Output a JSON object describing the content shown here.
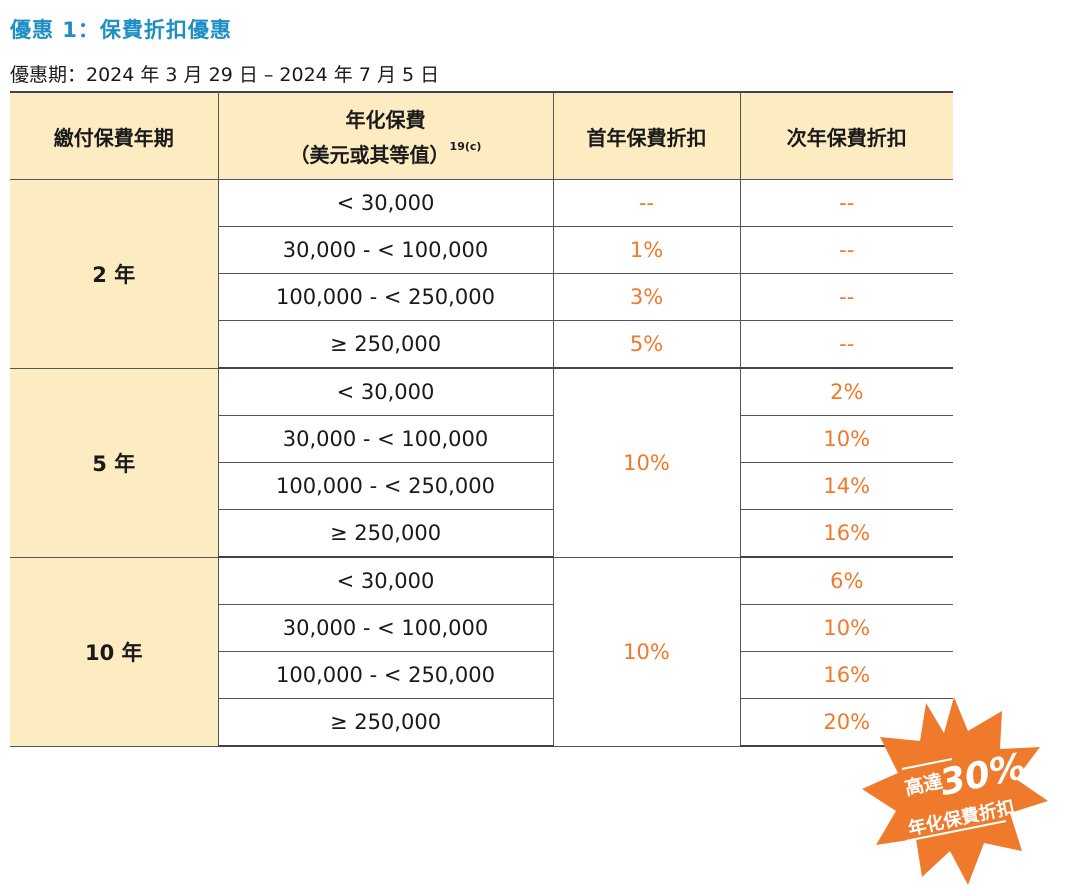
{
  "offer": {
    "title": "優惠 1：保費折扣優惠",
    "period": "優惠期：2024 年 3 月 29 日 – 2024 年 7 月 5 日"
  },
  "table": {
    "headers": {
      "term": "繳付保費年期",
      "premium_line1": "年化保費",
      "premium_line2": "（美元或其等值）",
      "premium_note": "19(c)",
      "first_year": "首年保費折扣",
      "second_year": "次年保費折扣"
    },
    "groups": [
      {
        "term": "2 年",
        "rows": [
          {
            "range": "< 30,000",
            "first": "--",
            "second": "--"
          },
          {
            "range": "30,000 - < 100,000",
            "first": "1%",
            "second": "--"
          },
          {
            "range": "100,000 - < 250,000",
            "first": "3%",
            "second": "--"
          },
          {
            "range": "≥ 250,000",
            "first": "5%",
            "second": "--"
          }
        ]
      },
      {
        "term": "5 年",
        "first": "10%",
        "rows": [
          {
            "range": "< 30,000",
            "second": "2%"
          },
          {
            "range": "30,000 - < 100,000",
            "second": "10%"
          },
          {
            "range": "100,000 - < 250,000",
            "second": "14%"
          },
          {
            "range": "≥ 250,000",
            "second": "16%"
          }
        ]
      },
      {
        "term": "10 年",
        "first": "10%",
        "rows": [
          {
            "range": "< 30,000",
            "second": "6%"
          },
          {
            "range": "30,000 - < 100,000",
            "second": "10%"
          },
          {
            "range": "100,000 - < 250,000",
            "second": "16%"
          },
          {
            "range": "≥ 250,000",
            "second": "20%"
          }
        ]
      }
    ]
  },
  "badge": {
    "prefix": "高達",
    "value": "30%",
    "label": "年化保費折扣",
    "color": "#ef7a2c"
  },
  "colors": {
    "title": "#1f8fc3",
    "header_bg": "#fdebc2",
    "value_text": "#ef7a2c"
  }
}
